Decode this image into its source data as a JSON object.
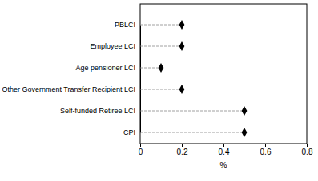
{
  "chart_data": {
    "type": "dot",
    "orientation": "horizontal",
    "categories": [
      "PBLCI",
      "Employee LCI",
      "Age pensioner LCI",
      "Other Government Transfer Recipient LCI",
      "Self-funded Retiree LCI",
      "CPI"
    ],
    "values": [
      0.2,
      0.2,
      0.1,
      0.2,
      0.5,
      0.5
    ],
    "color": "#000000",
    "marker": "diamond",
    "line_style": "dashed",
    "x_label": "%",
    "xlim": [
      0,
      0.8
    ],
    "xticks": [
      0,
      0.2,
      0.4,
      0.6,
      0.8
    ],
    "grid": false
  }
}
